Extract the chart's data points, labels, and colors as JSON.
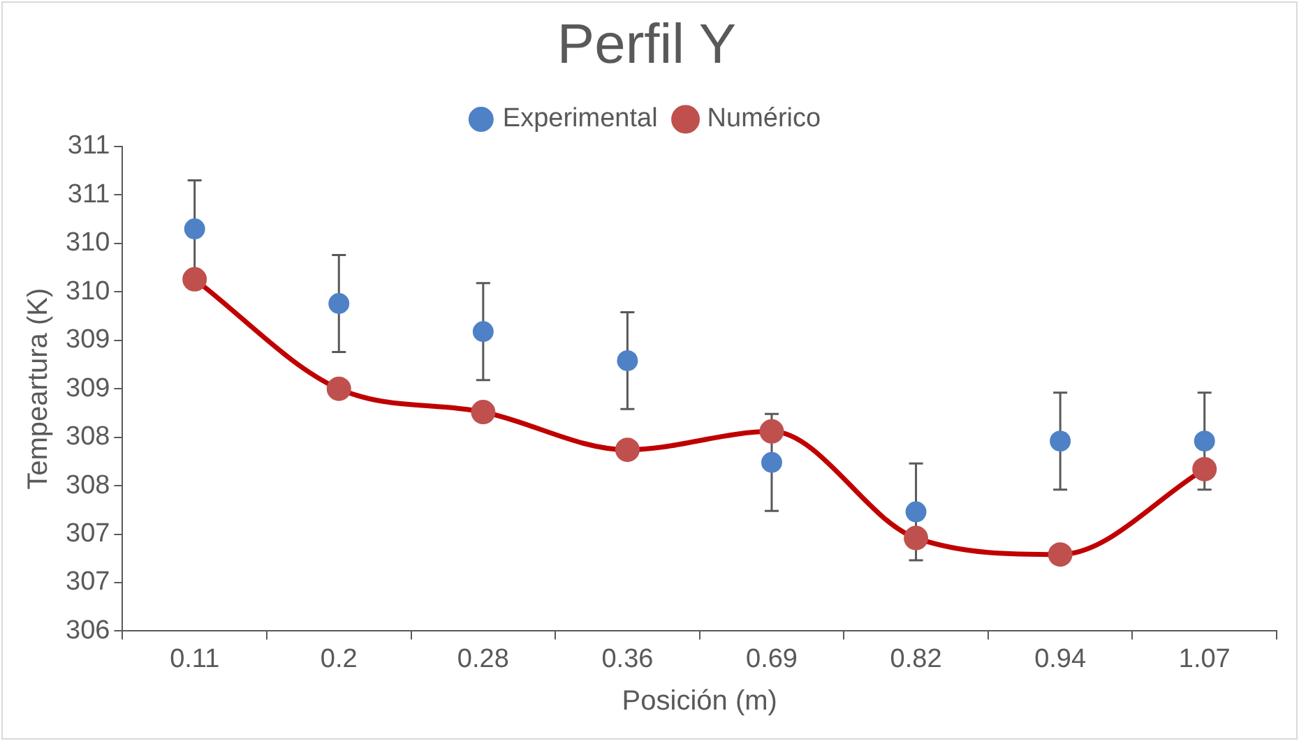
{
  "chart_data": {
    "type": "line",
    "title": "Perfil Y",
    "xlabel": "Posición (m)",
    "ylabel": "Tempeartura (K)",
    "categories": [
      "0.11",
      "0.2",
      "0.28",
      "0.36",
      "0.69",
      "0.82",
      "0.94",
      "1.07"
    ],
    "series": [
      {
        "name": "Experimental",
        "type": "scatter",
        "color": "#4f81c7",
        "values": [
          310.15,
          309.38,
          309.09,
          308.79,
          307.74,
          307.23,
          307.96,
          307.96
        ],
        "errors": [
          0.5,
          0.5,
          0.5,
          0.5,
          0.5,
          0.5,
          0.5,
          0.5
        ],
        "marker": "circle"
      },
      {
        "name": "Numérico",
        "type": "line",
        "color": "#c00000",
        "values": [
          309.63,
          308.5,
          308.26,
          307.87,
          308.06,
          306.96,
          306.79,
          307.67
        ],
        "marker": "circle"
      }
    ],
    "ylim": [
      306,
      311
    ],
    "yticks": [
      306,
      {
        "value": 306.5,
        "label": "307"
      },
      307,
      {
        "value": 307.5,
        "label": "308"
      },
      308,
      {
        "value": 308.5,
        "label": "309"
      },
      309,
      {
        "value": 309.5,
        "label": "310"
      },
      310,
      {
        "value": 310.5,
        "label": "311"
      },
      311
    ],
    "grid": false,
    "legend": "top"
  }
}
